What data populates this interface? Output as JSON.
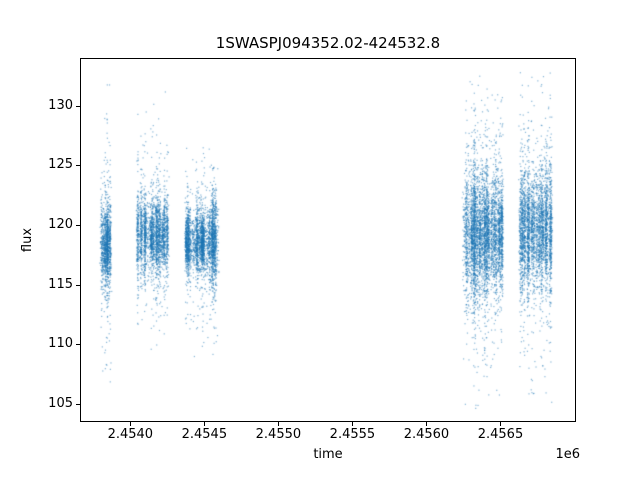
{
  "chart_data": {
    "type": "scatter",
    "title": "1SWASPJ094352.02-424532.8",
    "xlabel": "time",
    "ylabel": "flux",
    "offset_text": "1e6",
    "xlim": [
      2453660,
      2457010
    ],
    "ylim": [
      103.5,
      134.0
    ],
    "xticks": [
      2454000,
      2454500,
      2455000,
      2455500,
      2456000,
      2456500
    ],
    "xtick_labels": [
      "2.4540",
      "2.4545",
      "2.4550",
      "2.4555",
      "2.4560",
      "2.4565"
    ],
    "yticks": [
      105,
      110,
      115,
      120,
      125,
      130
    ],
    "ytick_labels": [
      "105",
      "110",
      "115",
      "120",
      "125",
      "130"
    ],
    "grid": false,
    "legend": "none",
    "marker_color": "#1f77b4",
    "marker_alpha": 0.55,
    "spine_color": "#000000",
    "background_color": "#ffffff",
    "clusters": [
      {
        "x_start": 2453800,
        "x_end": 2453872,
        "nights": 8,
        "points": 1300,
        "flux_center": 118.3,
        "flux_sigma_min": 1.2,
        "flux_sigma_max": 2.6,
        "tail_fraction": 0.14,
        "tail_sigma": 5.5,
        "flux_min": 106.5,
        "flux_max": 132.5
      },
      {
        "x_start": 2454048,
        "x_end": 2454250,
        "nights": 20,
        "points": 2600,
        "flux_center": 119.1,
        "flux_sigma_min": 0.9,
        "flux_sigma_max": 2.1,
        "tail_fraction": 0.11,
        "tail_sigma": 4.5,
        "flux_min": 109.5,
        "flux_max": 132.5
      },
      {
        "x_start": 2454372,
        "x_end": 2454594,
        "nights": 24,
        "points": 3200,
        "flux_center": 118.6,
        "flux_sigma_min": 0.9,
        "flux_sigma_max": 2.0,
        "tail_fraction": 0.11,
        "tail_sigma": 4.0,
        "flux_min": 105.0,
        "flux_max": 126.5
      },
      {
        "x_start": 2456242,
        "x_end": 2456512,
        "nights": 30,
        "points": 4300,
        "flux_center": 119.2,
        "flux_sigma_min": 1.5,
        "flux_sigma_max": 3.4,
        "tail_fraction": 0.15,
        "tail_sigma": 6.0,
        "flux_min": 104.6,
        "flux_max": 132.5
      },
      {
        "x_start": 2456622,
        "x_end": 2456850,
        "nights": 26,
        "points": 3300,
        "flux_center": 119.6,
        "flux_sigma_min": 1.5,
        "flux_sigma_max": 3.2,
        "tail_fraction": 0.13,
        "tail_sigma": 6.0,
        "flux_min": 105.0,
        "flux_max": 133.0
      }
    ]
  }
}
